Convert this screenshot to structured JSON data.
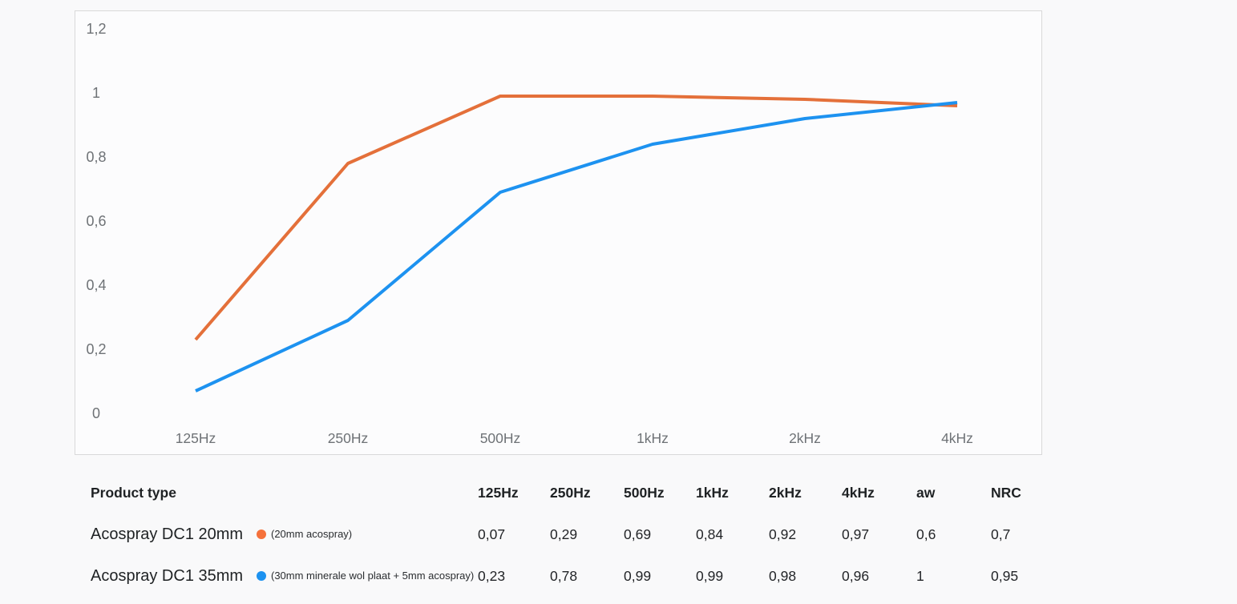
{
  "chart_data": {
    "type": "line",
    "title": "",
    "xlabel": "",
    "ylabel": "",
    "x_categories": [
      "125Hz",
      "250Hz",
      "500Hz",
      "1kHz",
      "2kHz",
      "4kHz"
    ],
    "y_tick_labels": [
      "1,2",
      "1",
      "0,8",
      "0,6",
      "0,4",
      "0,2",
      "0"
    ],
    "ylim": [
      0,
      1.2
    ],
    "grid": false,
    "legend_position": "none",
    "series": [
      {
        "name": "Acospray DC1 35mm (30mm minerale wol plaat + 5mm acospray)",
        "color": "#e4703a",
        "values": [
          0.23,
          0.78,
          0.99,
          0.99,
          0.98,
          0.96
        ]
      },
      {
        "name": "Acospray DC1 20mm (20mm acospray)",
        "color": "#1d92f0",
        "values": [
          0.07,
          0.29,
          0.69,
          0.84,
          0.92,
          0.97
        ]
      }
    ]
  },
  "table": {
    "product_type_header": "Product type",
    "columns": [
      "125Hz",
      "250Hz",
      "500Hz",
      "1kHz",
      "2kHz",
      "4kHz",
      "aw",
      "NRC"
    ],
    "rows": [
      {
        "name": "Acospray DC1 20mm",
        "dot_color": "#f5713b",
        "note": "(20mm acospray)",
        "values": [
          "0,07",
          "0,29",
          "0,69",
          "0,84",
          "0,92",
          "0,97",
          "0,6",
          "0,7"
        ]
      },
      {
        "name": "Acospray DC1 35mm",
        "dot_color": "#1d92f0",
        "note": "(30mm minerale wol plaat + 5mm acospray)",
        "values": [
          "0,23",
          "0,78",
          "0,99",
          "0,99",
          "0,98",
          "0,96",
          "1",
          "0,95"
        ]
      }
    ]
  },
  "colors": {
    "page_background": "#f9f9fa",
    "panel_background": "#fcfcfd",
    "panel_border": "#d9d9d9",
    "axis_text": "#6e7276",
    "table_text": "#232528",
    "orange_line": "#e4703a",
    "blue_line": "#1d92f0"
  }
}
